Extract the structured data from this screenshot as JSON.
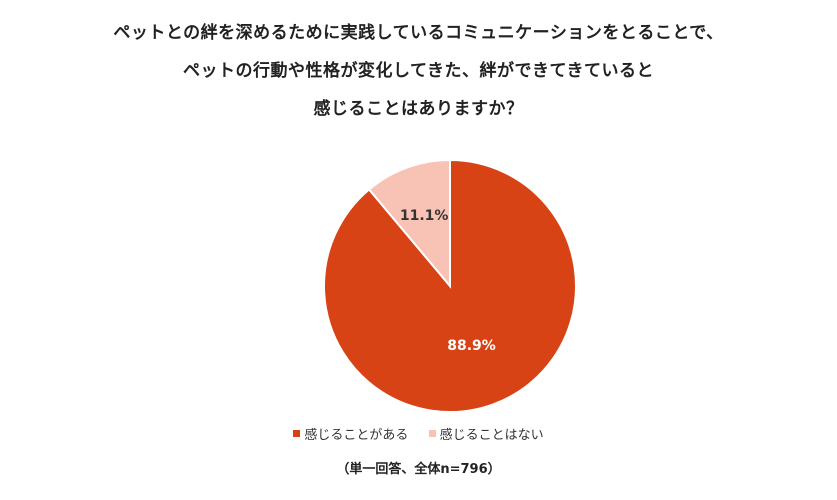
{
  "title_lines": [
    "ペットとの絆を深めるために実践しているコミュニケーションをとることで、",
    "ペットの行動や性格が変化してきた、絆ができてきていると",
    "感じることはありますか？"
  ],
  "chart_data": {
    "type": "pie",
    "title": "ペットとの絆を深めるために実践しているコミュニケーションをとることで、ペットの行動や性格が変化してきた、絆ができてきていると感じることはありますか？",
    "slices": [
      {
        "label": "感じることがある",
        "value": 88.9,
        "display": "88.9%",
        "color": "#D84315",
        "text_color": "#ffffff"
      },
      {
        "label": "感じることはない",
        "value": 11.1,
        "display": "11.1%",
        "color": "#F8C2B4",
        "text_color": "#333333"
      }
    ],
    "legend_position": "bottom",
    "note": "（単一回答、全体n=796）"
  }
}
